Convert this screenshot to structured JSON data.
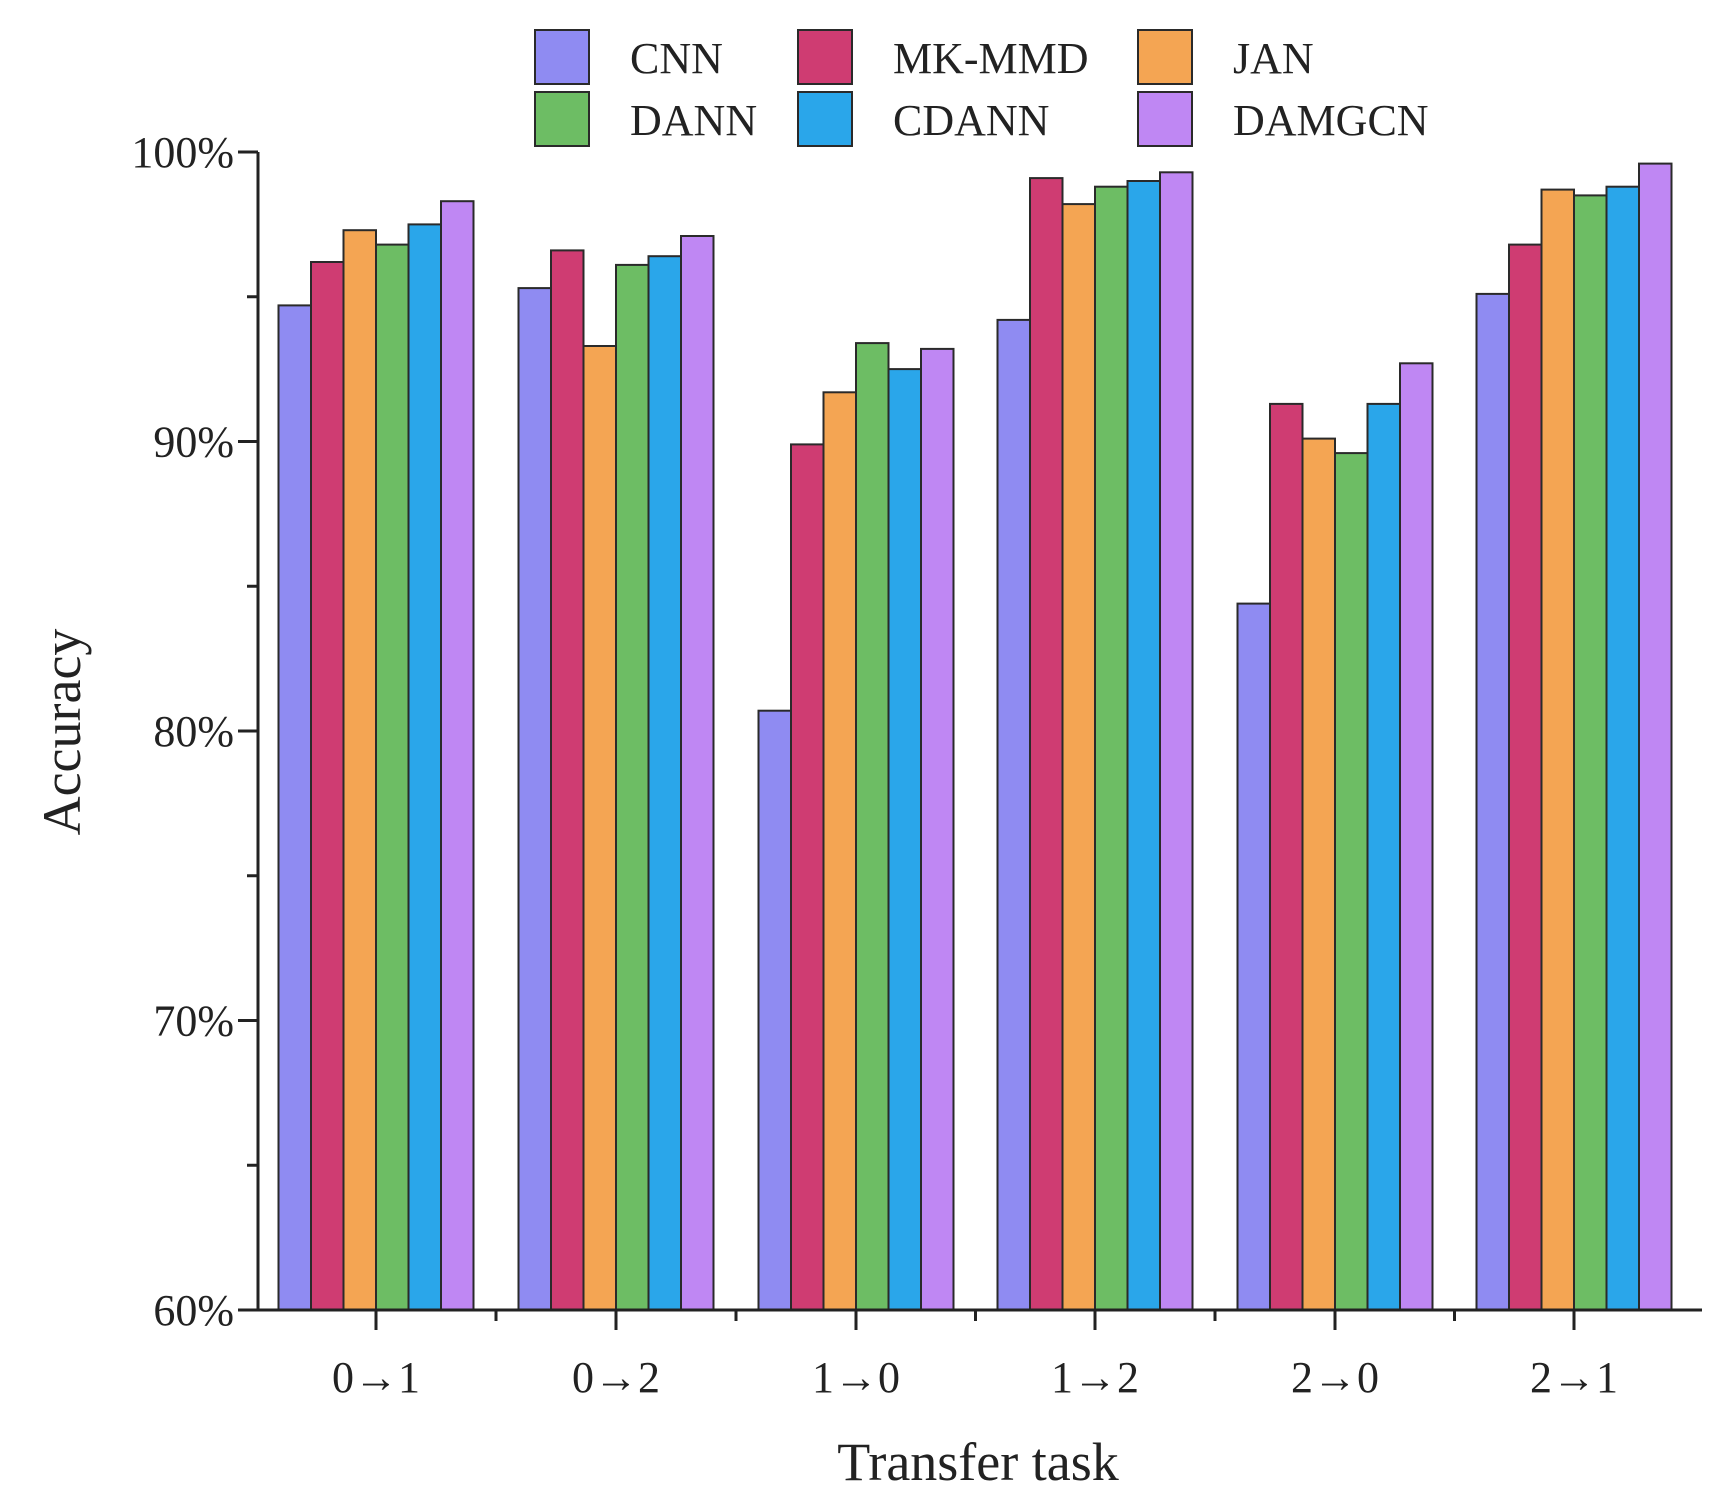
{
  "chart_data": {
    "type": "bar",
    "title": "",
    "xlabel": "Transfer task",
    "ylabel": "Accuracy",
    "ylim": [
      60,
      100
    ],
    "y_major_ticks": [
      60,
      70,
      80,
      90,
      100
    ],
    "y_minor_ticks": [
      65,
      75,
      85,
      95
    ],
    "y_tick_suffix": "%",
    "legend_position": "top-center",
    "categories": [
      "0→1",
      "0→2",
      "1→0",
      "1→2",
      "2→0",
      "2→1"
    ],
    "series": [
      {
        "name": "CNN",
        "color": "#8f8bf2",
        "values": [
          94.7,
          95.3,
          80.7,
          94.2,
          84.4,
          95.1
        ]
      },
      {
        "name": "MK-MMD",
        "color": "#cf3c72",
        "values": [
          96.2,
          96.6,
          89.9,
          99.1,
          91.3,
          96.8
        ]
      },
      {
        "name": "JAN",
        "color": "#f4a553",
        "values": [
          97.3,
          93.3,
          91.7,
          98.2,
          90.1,
          98.7
        ]
      },
      {
        "name": "DANN",
        "color": "#6dbd64",
        "values": [
          96.8,
          96.1,
          93.4,
          98.8,
          89.6,
          98.5
        ]
      },
      {
        "name": "CDANN",
        "color": "#2aa6ea",
        "values": [
          97.5,
          96.4,
          92.5,
          99.0,
          91.3,
          98.8
        ]
      },
      {
        "name": "DAMGCN",
        "color": "#bf87f3",
        "values": [
          98.3,
          97.1,
          93.2,
          99.3,
          92.7,
          99.6
        ]
      }
    ]
  }
}
